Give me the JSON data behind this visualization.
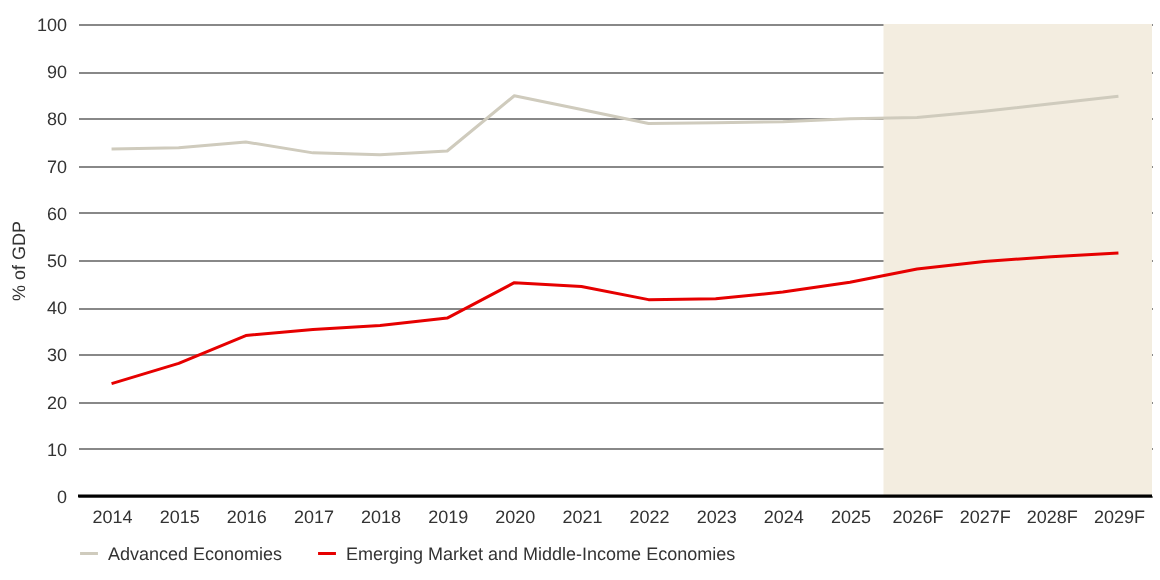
{
  "chart_data": {
    "type": "line",
    "ylabel": "% of GDP",
    "categories": [
      "2014",
      "2015",
      "2016",
      "2017",
      "2018",
      "2019",
      "2020",
      "2021",
      "2022",
      "2023",
      "2024",
      "2025",
      "2026F",
      "2027F",
      "2028F",
      "2029F"
    ],
    "series": [
      {
        "name": "Advanced Economies",
        "color": "#cfcbbd",
        "values": [
          73.5,
          73.8,
          75,
          72.7,
          72.3,
          73.1,
          84.8,
          81.9,
          78.9,
          79.1,
          79.3,
          79.9,
          80.2,
          81.5,
          83.1,
          84.7
        ]
      },
      {
        "name": "Emerging Market and Middle-Income Economies",
        "color": "#e60000",
        "values": [
          23.8,
          28.1,
          34,
          35.3,
          36.1,
          37.7,
          45.2,
          44.4,
          41.6,
          41.8,
          43.2,
          45.3,
          48.1,
          49.7,
          50.7,
          51.5
        ]
      }
    ],
    "ylim": [
      0,
      100
    ],
    "yticks": [
      0,
      10,
      20,
      30,
      40,
      50,
      60,
      70,
      80,
      90,
      100
    ],
    "grid": "y",
    "legend": "bottom left",
    "marker": "none",
    "line_style": "solid",
    "bands": [
      {
        "axis": "x",
        "from": "2026F",
        "to": "2029F",
        "color": "#f3ede0"
      }
    ]
  }
}
